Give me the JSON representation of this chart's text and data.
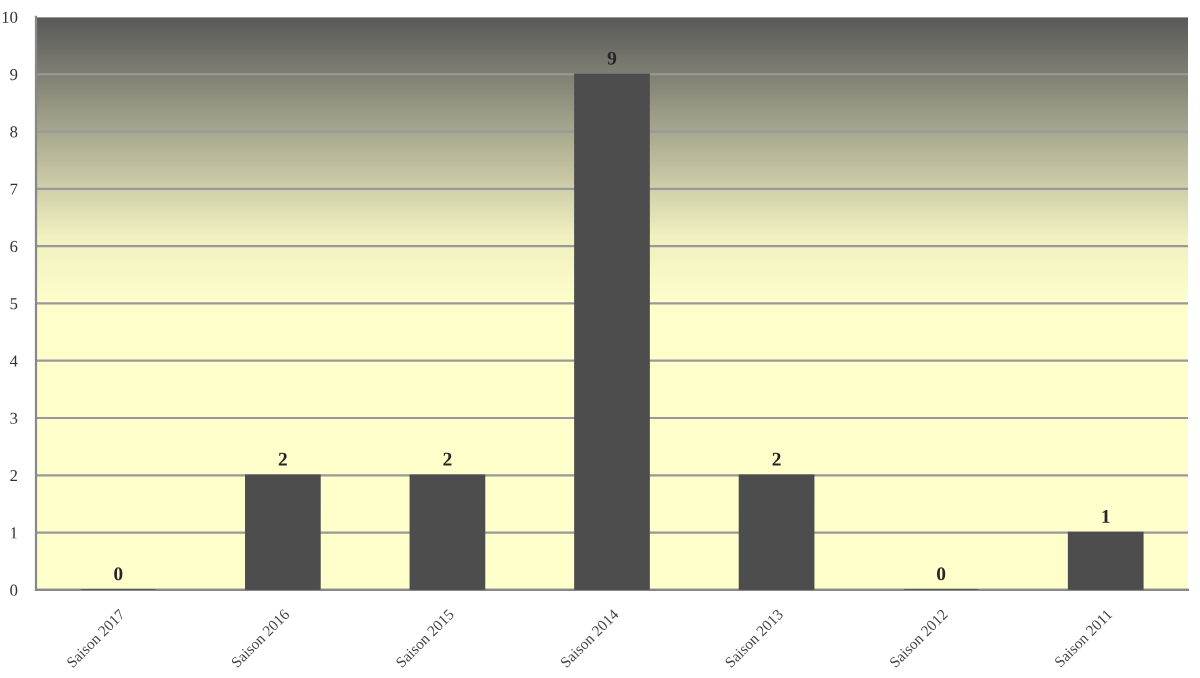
{
  "chart_data": {
    "type": "bar",
    "categories": [
      "Saison 2017",
      "Saison 2016",
      "Saison 2015",
      "Saison 2014",
      "Saison 2013",
      "Saison 2012",
      "Saison 2011"
    ],
    "values": [
      0,
      2,
      2,
      9,
      2,
      0,
      1
    ],
    "color": "#4d4d4d",
    "ylim": [
      0,
      10
    ],
    "yticks": [
      0,
      1,
      2,
      3,
      4,
      5,
      6,
      7,
      8,
      9,
      10
    ],
    "grid": "y",
    "data_labels": true,
    "legend": false
  }
}
